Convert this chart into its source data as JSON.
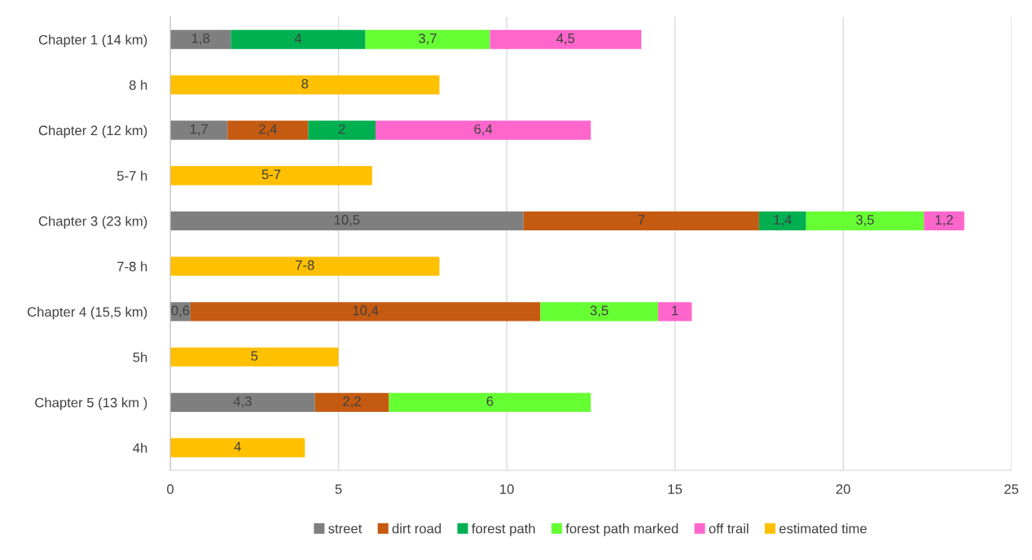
{
  "chart_data": {
    "type": "bar",
    "orientation": "horizontal",
    "stacked": true,
    "categories": [
      "Chapter 1 (14 km)",
      "8 h",
      "Chapter 2 (12 km)",
      "5-7 h",
      "Chapter 3 (23 km)",
      "7-8 h",
      "Chapter 4 (15,5 km)",
      "5h",
      "Chapter 5 (13 km )",
      "4h"
    ],
    "series": [
      {
        "name": "street",
        "color": "#7f7f7f",
        "values": [
          1.8,
          null,
          1.7,
          null,
          10.5,
          null,
          0.6,
          null,
          4.3,
          null
        ],
        "value_labels": [
          "1,8",
          null,
          "1,7",
          null,
          "10,5",
          null,
          "0,6",
          null,
          "4,3",
          null
        ]
      },
      {
        "name": "dirt road",
        "color": "#c55a11",
        "values": [
          null,
          null,
          2.4,
          null,
          7,
          null,
          10.4,
          null,
          2.2,
          null
        ],
        "value_labels": [
          null,
          null,
          "2,4",
          null,
          "7",
          null,
          "10,4",
          null,
          "2,2",
          null
        ]
      },
      {
        "name": "forest path",
        "color": "#00b050",
        "values": [
          4,
          null,
          2,
          null,
          1.4,
          null,
          null,
          null,
          null,
          null
        ],
        "value_labels": [
          "4",
          null,
          "2",
          null,
          "1,4",
          null,
          null,
          null,
          null,
          null
        ]
      },
      {
        "name": "forest path marked",
        "color": "#66ff33",
        "values": [
          3.7,
          null,
          null,
          null,
          3.5,
          null,
          3.5,
          null,
          6,
          null
        ],
        "value_labels": [
          "3,7",
          null,
          null,
          null,
          "3,5",
          null,
          "3,5",
          null,
          "6",
          null
        ]
      },
      {
        "name": "off trail",
        "color": "#ff66cc",
        "values": [
          4.5,
          null,
          6.4,
          null,
          1.2,
          null,
          1,
          null,
          null,
          null
        ],
        "value_labels": [
          "4,5",
          null,
          "6,4",
          null,
          "1,2",
          null,
          "1",
          null,
          null,
          null
        ]
      },
      {
        "name": "estimated time",
        "color": "#ffc000",
        "values": [
          null,
          8,
          null,
          6,
          null,
          8,
          null,
          5,
          null,
          4
        ],
        "value_labels": [
          null,
          "8",
          null,
          "5-7",
          null,
          "7-8",
          null,
          "5",
          null,
          "4"
        ]
      }
    ],
    "xlim": [
      0,
      25
    ],
    "xticks": [
      0,
      5,
      10,
      15,
      20,
      25
    ],
    "grid": "x",
    "legend": "bottom"
  }
}
